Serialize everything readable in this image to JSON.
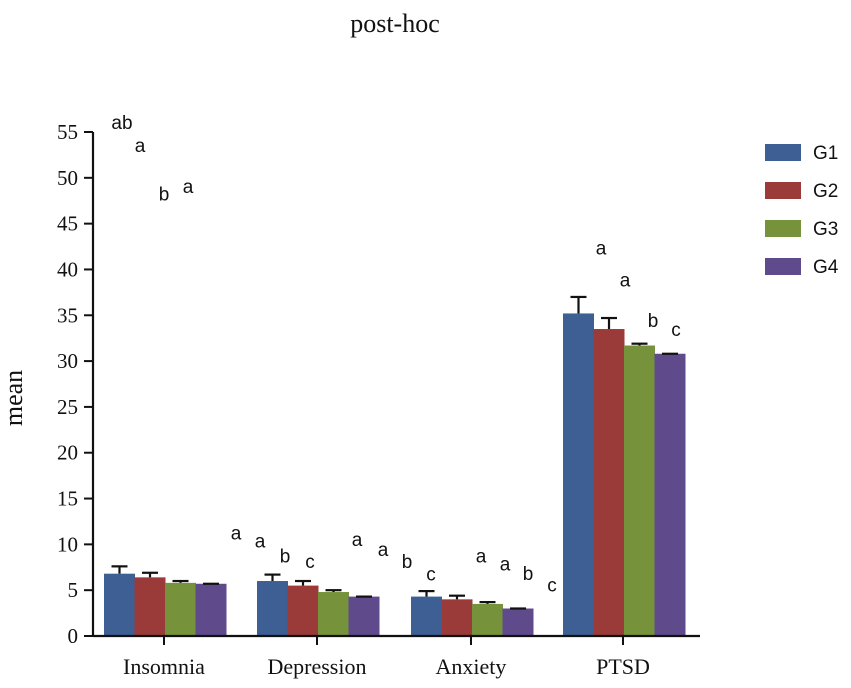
{
  "chart_data": {
    "type": "bar",
    "title": "post-hoc",
    "xlabel": "",
    "ylabel": "mean",
    "ylim": [
      0,
      55
    ],
    "yticks": [
      0,
      5,
      10,
      15,
      20,
      25,
      30,
      35,
      40,
      45,
      50,
      55
    ],
    "grid": false,
    "legend_position": "top-right",
    "categories": [
      "Insomnia",
      "Depression",
      "Anxiety",
      "PTSD"
    ],
    "series": [
      {
        "name": "G1",
        "color": "#3d5f94",
        "values": [
          6.8,
          6.0,
          4.3,
          35.2
        ],
        "errors": [
          0.8,
          0.7,
          0.6,
          1.8
        ]
      },
      {
        "name": "G2",
        "color": "#9a3b3a",
        "values": [
          6.4,
          5.5,
          4.0,
          33.5
        ],
        "errors": [
          0.5,
          0.5,
          0.4,
          1.2
        ]
      },
      {
        "name": "G3",
        "color": "#76933c",
        "values": [
          5.8,
          4.8,
          3.5,
          31.7
        ],
        "errors": [
          0.2,
          0.2,
          0.2,
          0.2
        ]
      },
      {
        "name": "G4",
        "color": "#5f4a8b",
        "values": [
          5.7,
          4.3,
          3.0,
          30.8
        ],
        "errors": [
          0,
          0,
          0,
          0
        ]
      }
    ],
    "annotations": [
      {
        "category": "Insomnia",
        "series": "G1",
        "text": "ab",
        "y": 56.1
      },
      {
        "category": "Insomnia",
        "series": "G2",
        "text": "a",
        "y": 53.6
      },
      {
        "category": "Insomnia",
        "series": "G3",
        "text": "b",
        "y": 48.3
      },
      {
        "category": "Insomnia",
        "series": "G4",
        "text": "a",
        "y": 49.1
      },
      {
        "category": "Depression",
        "series": "G1",
        "text": "a",
        "y": 11.3
      },
      {
        "category": "Depression",
        "series": "G2",
        "text": "a",
        "y": 10.4
      },
      {
        "category": "Depression",
        "series": "G3",
        "text": "b",
        "y": 8.8
      },
      {
        "category": "Depression",
        "series": "G4",
        "text": "c",
        "y": 8.2
      },
      {
        "category": "Depression",
        "series": "extra-1",
        "text": "a",
        "y": 10.6
      },
      {
        "category": "Depression",
        "series": "extra-2",
        "text": "a",
        "y": 9.5
      },
      {
        "category": "Anxiety",
        "series": "G1",
        "text": "b",
        "y": 8.2
      },
      {
        "category": "Anxiety",
        "series": "G2",
        "text": "c",
        "y": 6.8
      },
      {
        "category": "Anxiety",
        "series": "G3",
        "text": "a",
        "y": 8.8
      },
      {
        "category": "Anxiety",
        "series": "G4",
        "text": "a",
        "y": 7.9
      },
      {
        "category": "Anxiety",
        "series": "extra-1",
        "text": "b",
        "y": 6.9
      },
      {
        "category": "Anxiety",
        "series": "extra-2",
        "text": "c",
        "y": 5.6
      },
      {
        "category": "PTSD",
        "series": "G1",
        "text": "a",
        "y": 42.4
      },
      {
        "category": "PTSD",
        "series": "G2",
        "text": "a",
        "y": 38.9
      },
      {
        "category": "PTSD",
        "series": "G3",
        "text": "b",
        "y": 34.5
      },
      {
        "category": "PTSD",
        "series": "G4",
        "text": "c",
        "y": 33.5
      }
    ]
  }
}
